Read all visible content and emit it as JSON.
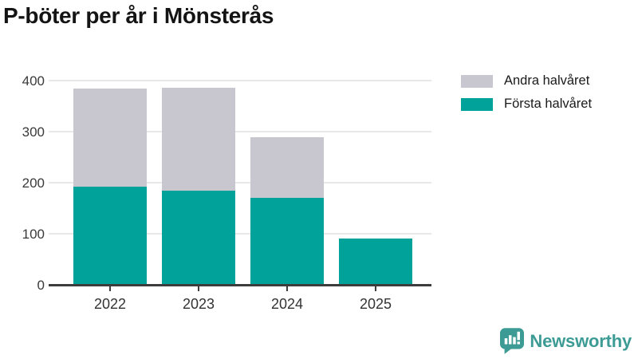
{
  "title": "P-böter per år i Mönsterås",
  "colors": {
    "first_half": "#00a29a",
    "second_half": "#c8c6cf",
    "axis": "#3d3d3d",
    "grid": "#e8e8e8",
    "brand_teal": "#3d9b95"
  },
  "legend": [
    {
      "label": "Andra halvåret",
      "color": "#c8c6cf"
    },
    {
      "label": "Första halvåret",
      "color": "#00a29a"
    }
  ],
  "chart_data": {
    "type": "bar",
    "stacked": true,
    "title": "P-böter per år i Mönsterås",
    "categories": [
      "2022",
      "2023",
      "2024",
      "2025"
    ],
    "series": [
      {
        "name": "Första halvåret",
        "color": "#00a29a",
        "values": [
          193,
          185,
          171,
          90
        ]
      },
      {
        "name": "Andra halvåret",
        "color": "#c8c6cf",
        "values": [
          192,
          202,
          119,
          0
        ]
      }
    ],
    "xlabel": "",
    "ylabel": "",
    "yticks": [
      0,
      100,
      200,
      300,
      400
    ],
    "ylim": [
      0,
      400
    ],
    "grid": "horizontal",
    "legend_position": "top-right"
  },
  "footer": {
    "brand": "Newsworthy",
    "brand_icon": "bar-chart-speech-bubble"
  }
}
